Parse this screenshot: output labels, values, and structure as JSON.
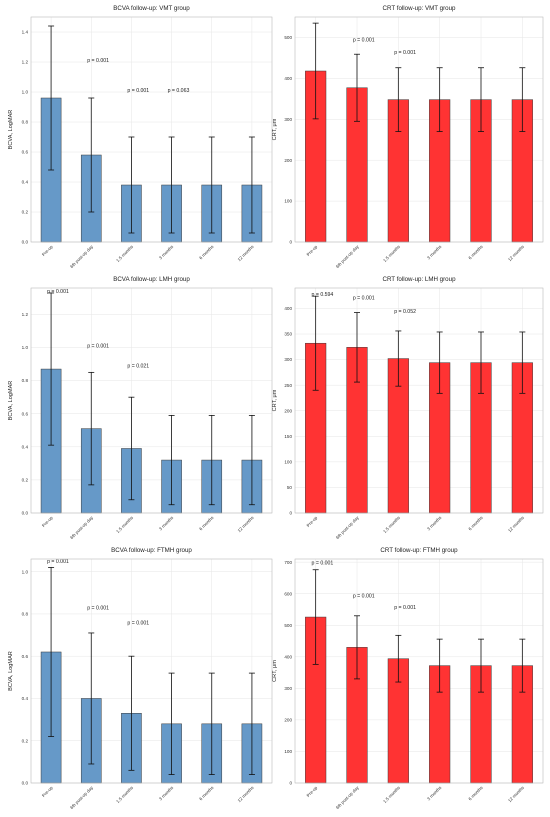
{
  "chart_data": [
    {
      "type": "bar",
      "title": "BCVA follow-up: VMT group",
      "ylabel": "BCVA, LogMAR",
      "ylim": [
        0,
        1.5
      ],
      "yticks": [
        "0.0",
        "0.2",
        "0.4",
        "0.6",
        "0.8",
        "1.0",
        "1.2",
        "1.4"
      ],
      "categories": [
        "Pre-op",
        "6th post-op day",
        "1.5 months",
        "3 months",
        "6 months",
        "12 months"
      ],
      "values": [
        0.96,
        0.58,
        0.38,
        0.38,
        0.38,
        0.38
      ],
      "errors": [
        0.48,
        0.38,
        0.32,
        0.32,
        0.32,
        0.32
      ],
      "color": "#6699c8",
      "annotations": [
        {
          "text": "p = 0.001",
          "x_index": 1,
          "y": 1.2
        },
        {
          "text": "p = 0.001",
          "x_index": 2,
          "y": 1.0
        },
        {
          "text": "p = 0.063",
          "x_index": 3,
          "y": 1.0
        }
      ],
      "grid": true
    },
    {
      "type": "bar",
      "title": "CRT follow-up: VMT group",
      "ylabel": "CRT, μm",
      "ylim": [
        0,
        550
      ],
      "yticks": [
        "0",
        "100",
        "200",
        "300",
        "400",
        "500"
      ],
      "categories": [
        "Pre-op",
        "6th post-op day",
        "1.5 months",
        "3 months",
        "6 months",
        "12 months"
      ],
      "values": [
        418,
        377,
        348,
        348,
        348,
        348
      ],
      "errors": [
        117,
        82,
        78,
        78,
        78,
        78
      ],
      "color": "#ff3333",
      "annotations": [
        {
          "text": "p = 0.001",
          "x_index": 1,
          "y": 490
        },
        {
          "text": "p = 0.001",
          "x_index": 2,
          "y": 460
        }
      ],
      "grid": true
    },
    {
      "type": "bar",
      "title": "BCVA follow-up: LMH group",
      "ylabel": "BCVA, LogMAR",
      "ylim": [
        0,
        1.36
      ],
      "yticks": [
        "0.0",
        "0.2",
        "0.4",
        "0.6",
        "0.8",
        "1.0",
        "1.2"
      ],
      "categories": [
        "Pre-op",
        "6th post-op day",
        "1.5 months",
        "3 months",
        "6 months",
        "12 months"
      ],
      "values": [
        0.87,
        0.51,
        0.39,
        0.32,
        0.32,
        0.32
      ],
      "errors": [
        0.46,
        0.34,
        0.31,
        0.27,
        0.27,
        0.27
      ],
      "color": "#6699c8",
      "annotations": [
        {
          "text": "p = 0.001",
          "x_index": 0,
          "y": 1.33
        },
        {
          "text": "p = 0.001",
          "x_index": 1,
          "y": 1.0
        },
        {
          "text": "p = 0.021",
          "x_index": 2,
          "y": 0.88
        }
      ],
      "grid": true
    },
    {
      "type": "bar",
      "title": "CRT follow-up: LMH group",
      "ylabel": "CRT, μm",
      "ylim": [
        0,
        440
      ],
      "yticks": [
        "0",
        "50",
        "100",
        "150",
        "200",
        "250",
        "300",
        "350",
        "400"
      ],
      "categories": [
        "Pre-op",
        "6th post-op day",
        "1.5 months",
        "3 months",
        "6 months",
        "12 months"
      ],
      "values": [
        332,
        324,
        302,
        294,
        294,
        294
      ],
      "errors": [
        92,
        68,
        54,
        60,
        60,
        60
      ],
      "color": "#ff3333",
      "annotations": [
        {
          "text": "p = 0.594",
          "x_index": 0,
          "y": 424
        },
        {
          "text": "p = 0.001",
          "x_index": 1,
          "y": 418
        },
        {
          "text": "p = 0.052",
          "x_index": 2,
          "y": 391
        }
      ],
      "grid": true
    },
    {
      "type": "bar",
      "title": "BCVA follow-up: FTMH group",
      "ylabel": "BCVA, LogMAR",
      "ylim": [
        0,
        1.06
      ],
      "yticks": [
        "0.0",
        "0.2",
        "0.4",
        "0.6",
        "0.8",
        "1.0"
      ],
      "categories": [
        "Pre-op",
        "6th post-op day",
        "1.5 months",
        "3 months",
        "6 months",
        "12 months"
      ],
      "values": [
        0.62,
        0.4,
        0.33,
        0.28,
        0.28,
        0.28
      ],
      "errors": [
        0.4,
        0.31,
        0.27,
        0.24,
        0.24,
        0.24
      ],
      "color": "#6699c8",
      "annotations": [
        {
          "text": "p = 0.001",
          "x_index": 0,
          "y": 1.04
        },
        {
          "text": "p = 0.001",
          "x_index": 1,
          "y": 0.82
        },
        {
          "text": "p = 0.001",
          "x_index": 2,
          "y": 0.75
        }
      ],
      "grid": true
    },
    {
      "type": "bar",
      "title": "CRT follow-up: FTMH group",
      "ylabel": "CRT, μm",
      "ylim": [
        0,
        710
      ],
      "yticks": [
        "0",
        "100",
        "200",
        "300",
        "400",
        "500",
        "600",
        "700"
      ],
      "categories": [
        "Pre-op",
        "6th post-op day",
        "1.5 months",
        "3 months",
        "6 months",
        "12 months"
      ],
      "values": [
        526,
        430,
        394,
        372,
        372,
        372
      ],
      "errors": [
        150,
        100,
        74,
        84,
        84,
        84
      ],
      "color": "#ff3333",
      "annotations": [
        {
          "text": "p = 0.001",
          "x_index": 0,
          "y": 692
        },
        {
          "text": "p = 0.001",
          "x_index": 1,
          "y": 588
        },
        {
          "text": "p = 0.001",
          "x_index": 2,
          "y": 552
        }
      ],
      "grid": true
    }
  ]
}
